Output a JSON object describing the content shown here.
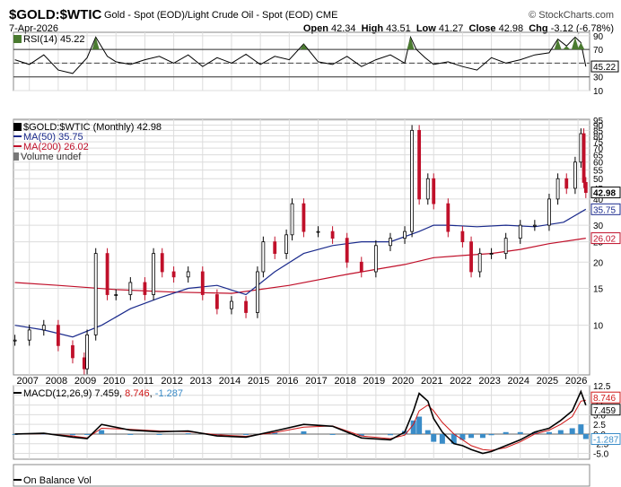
{
  "header": {
    "symbol": "$GOLD:$WTIC",
    "description": "Gold - Spot (EOD)/Light Crude Oil - Spot (EOD)",
    "exchange": "CME",
    "brand": "© StockCharts.com",
    "date": "7-Apr-2026",
    "open_label": "Open",
    "open": "42.34",
    "high_label": "High",
    "high": "43.51",
    "low_label": "Low",
    "low": "41.27",
    "close_label": "Close",
    "close": "42.98",
    "chg_label": "Chg",
    "chg": "-3.12 (-6.78%)"
  },
  "colors": {
    "price": "#000000",
    "ma50": "#1a2a8c",
    "ma200": "#c0102a",
    "macd": "#000000",
    "signal": "#d01818",
    "hist": "#3a8cc8",
    "rsi_fill": "#4a7a30",
    "grid": "#dcdcdc"
  },
  "chart_data": [
    {
      "type": "line",
      "title": "RSI(14)",
      "last_label": "RSI(14) 45.22",
      "last_value": 45.22,
      "ylim": [
        10,
        95
      ],
      "y_ticks": [
        10,
        30,
        50,
        70,
        90
      ],
      "ref_lines": [
        30,
        70
      ],
      "x": [
        2006.5,
        2007,
        2007.5,
        2008,
        2008.5,
        2009,
        2009.3,
        2009.7,
        2010,
        2010.5,
        2011,
        2011.5,
        2012,
        2012.5,
        2013,
        2013.5,
        2014,
        2014.5,
        2015,
        2015.5,
        2016,
        2016.5,
        2017,
        2017.5,
        2018,
        2018.5,
        2019,
        2019.5,
        2020,
        2020.2,
        2020.4,
        2020.7,
        2021,
        2021.5,
        2022,
        2022.5,
        2023,
        2023.5,
        2024,
        2024.5,
        2025,
        2025.3,
        2025.6,
        2025.9,
        2026.1,
        2026.27
      ],
      "values": [
        55,
        48,
        62,
        40,
        35,
        58,
        88,
        60,
        52,
        48,
        55,
        60,
        50,
        62,
        45,
        58,
        50,
        63,
        48,
        60,
        55,
        78,
        52,
        48,
        60,
        45,
        55,
        62,
        50,
        88,
        70,
        58,
        48,
        52,
        45,
        40,
        58,
        50,
        55,
        62,
        65,
        85,
        75,
        88,
        80,
        45.22
      ]
    },
    {
      "type": "line",
      "title": "$GOLD:$WTIC (Monthly) 42.98",
      "scale": "log",
      "ylim": [
        5.8,
        96
      ],
      "y_ticks": [
        10,
        15,
        20,
        25,
        30,
        35,
        40,
        45,
        50,
        55,
        60,
        65,
        70,
        75,
        80,
        85,
        90,
        95
      ],
      "x_ticks": [
        "2007",
        "2008",
        "2009",
        "2010",
        "2011",
        "2012",
        "2013",
        "2014",
        "2015",
        "2016",
        "2017",
        "2018",
        "2019",
        "2020",
        "2021",
        "2022",
        "2023",
        "2024",
        "2025",
        "2026"
      ],
      "last_close": 42.98,
      "legend_visible_text": "Volume undef",
      "series": [
        {
          "name": "$GOLD:$WTIC (Monthly) 42.98",
          "x": [
            2006.5,
            2007,
            2007.5,
            2008,
            2008.5,
            2008.9,
            2009,
            2009.3,
            2009.7,
            2010,
            2010.5,
            2011,
            2011.3,
            2011.6,
            2012,
            2012.5,
            2013,
            2013.5,
            2014,
            2014.5,
            2014.9,
            2015.1,
            2015.5,
            2015.9,
            2016.1,
            2016.5,
            2017,
            2017.5,
            2018,
            2018.5,
            2019,
            2019.5,
            2020,
            2020.25,
            2020.5,
            2020.8,
            2021,
            2021.5,
            2022,
            2022.3,
            2022.6,
            2023,
            2023.5,
            2024,
            2024.5,
            2025,
            2025.3,
            2025.6,
            2025.9,
            2026.1,
            2026.2,
            2026.27
          ],
          "values": [
            8.5,
            9.5,
            10,
            8,
            7,
            6.2,
            9,
            22,
            14,
            14,
            16,
            14,
            22,
            18,
            17,
            18,
            14,
            12,
            13,
            11.5,
            18,
            25,
            22,
            27,
            38,
            28,
            28,
            26,
            20,
            18,
            24,
            26,
            28,
            85,
            40,
            50,
            38,
            28,
            25,
            18,
            22,
            22,
            26,
            30,
            30,
            40,
            50,
            45,
            60,
            82,
            48,
            42.98
          ]
        },
        {
          "name": "MA(50) 35.75",
          "last_value": 35.75,
          "x": [
            2006.5,
            2007.5,
            2008.5,
            2009.5,
            2010.5,
            2011.5,
            2012.5,
            2013.5,
            2014.5,
            2015.5,
            2016.5,
            2017.5,
            2018.5,
            2019.5,
            2020.5,
            2021,
            2021.5,
            2022.5,
            2023.5,
            2024.5,
            2025.5,
            2026.27
          ],
          "values": [
            10,
            9.5,
            8.8,
            10,
            12,
            13.5,
            15,
            15.5,
            14,
            18,
            22,
            24,
            25,
            25,
            28,
            30,
            30,
            29.5,
            30,
            29.5,
            31,
            35.75
          ]
        },
        {
          "name": "MA(200) 26.02",
          "last_value": 26.02,
          "x": [
            2006.5,
            2008,
            2010,
            2012,
            2014,
            2016,
            2018,
            2020,
            2021,
            2022,
            2023,
            2024,
            2025,
            2026.27
          ],
          "values": [
            16,
            15.5,
            14.8,
            14.4,
            14.2,
            15.5,
            17.5,
            19.5,
            21,
            21.5,
            22,
            23,
            24.5,
            26.02
          ]
        }
      ]
    },
    {
      "type": "line",
      "title": "MACD(12,26,9)",
      "last_label_prefix": "MACD(12,26,9)",
      "macd_last": "7.459",
      "signal_last": "8.746",
      "hist_last": "-1.287",
      "ylim": [
        -6.5,
        12.5
      ],
      "y_ticks": [
        -5.0,
        -2.5,
        0.0,
        2.5,
        5.0,
        7.5,
        10.0,
        12.5
      ],
      "x": [
        2006.5,
        2007.5,
        2008.5,
        2009,
        2009.5,
        2010.5,
        2011.5,
        2012.5,
        2013.5,
        2014.5,
        2015.5,
        2016.5,
        2017.5,
        2018.5,
        2019.5,
        2020,
        2020.3,
        2020.5,
        2020.8,
        2021,
        2021.3,
        2021.7,
        2022,
        2022.3,
        2022.7,
        2023,
        2023.5,
        2024,
        2024.5,
        2025,
        2025.4,
        2025.8,
        2026.1,
        2026.27
      ],
      "series": [
        {
          "name": "MACD",
          "values": [
            0,
            0.2,
            -0.8,
            -1.2,
            2.5,
            1.0,
            0.6,
            0.8,
            -0.5,
            -0.8,
            0.8,
            2.5,
            2.0,
            -1.0,
            -1.5,
            0.5,
            6.0,
            10.5,
            8.5,
            4.0,
            0.5,
            -2.5,
            -3.0,
            -4.0,
            -5.0,
            -4.5,
            -3.0,
            -1.5,
            0.5,
            1.5,
            3.5,
            6.0,
            11.0,
            7.459
          ]
        },
        {
          "name": "Signal",
          "values": [
            0,
            0.1,
            -0.5,
            -1.0,
            1.5,
            1.2,
            0.8,
            0.6,
            -0.2,
            -0.6,
            0.4,
            1.8,
            2.1,
            -0.5,
            -1.2,
            -0.3,
            2.5,
            6.0,
            7.5,
            6.0,
            3.0,
            0,
            -1.5,
            -3.0,
            -4.0,
            -4.2,
            -3.5,
            -2.0,
            0,
            1.0,
            2.5,
            4.5,
            8.5,
            8.746
          ]
        },
        {
          "name": "Histogram",
          "values": [
            0,
            0.1,
            -0.3,
            -0.2,
            1.0,
            -0.2,
            -0.2,
            0.2,
            -0.3,
            -0.2,
            0.4,
            0.7,
            -0.1,
            -0.5,
            -0.3,
            0.8,
            3.5,
            4.5,
            1.0,
            -2.0,
            -2.5,
            -2.5,
            -1.5,
            -1.0,
            -1.0,
            -0.3,
            0.5,
            0.5,
            0.5,
            0.5,
            1.0,
            1.5,
            2.5,
            -1.287
          ]
        }
      ]
    }
  ],
  "footer": {
    "on_balance": "On Balance Vol"
  }
}
